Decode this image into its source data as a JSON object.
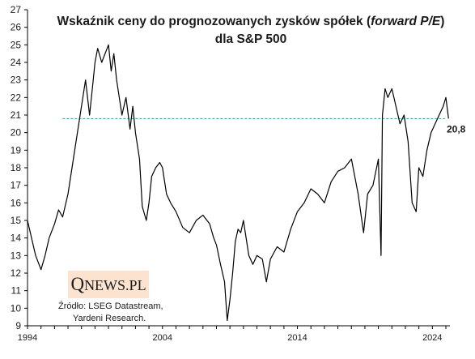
{
  "title": {
    "line1_prefix": "Wskaźnik ceny do prognozowanych zysków spółek (",
    "line1_italic": "forward P/E",
    "line1_suffix": ")",
    "line2": "dla S&P 500"
  },
  "logo": {
    "q": "Q",
    "rest": "NEWS.PL"
  },
  "source": {
    "line1": "Źródło: LSEG Datastream,",
    "line2": "Yardeni Research."
  },
  "colors": {
    "line": "#000000",
    "reference": "#2e9a9a",
    "logo_bg": "#fbe3d0"
  },
  "chart_data": {
    "type": "line",
    "title": "Wskaźnik ceny do prognozowanych zysków spółek (forward P/E) dla S&P 500",
    "xlabel": "",
    "ylabel": "",
    "ylim": [
      9,
      27
    ],
    "xlim": [
      1994,
      2025.3
    ],
    "y_ticks": [
      "9",
      "10",
      "11",
      "12",
      "13",
      "14",
      "15",
      "16",
      "17",
      "18",
      "19",
      "20",
      "21",
      "22",
      "23",
      "24",
      "25",
      "26",
      "27"
    ],
    "x_ticks": [
      "1994",
      "2004",
      "2014",
      "2024"
    ],
    "reference_line": {
      "value": 20.8,
      "label": "20,8",
      "x_start": 1996.6
    },
    "grid": false,
    "series": [
      {
        "x": [
          1994.0,
          1994.3,
          1994.6,
          1995.0,
          1995.3,
          1995.6,
          1996.0,
          1996.3,
          1996.6,
          1997.0,
          1997.3,
          1997.6,
          1998.0,
          1998.3,
          1998.6,
          1998.8,
          1999.0,
          1999.2,
          1999.5,
          1999.8,
          2000.0,
          2000.2,
          2000.4,
          2000.6,
          2000.8,
          2001.0,
          2001.3,
          2001.6,
          2001.8,
          2002.0,
          2002.3,
          2002.5,
          2002.8,
          2003.0,
          2003.2,
          2003.5,
          2003.8,
          2004.0,
          2004.3,
          2004.6,
          2005.0,
          2005.5,
          2006.0,
          2006.5,
          2007.0,
          2007.5,
          2007.8,
          2008.0,
          2008.3,
          2008.6,
          2008.8,
          2009.0,
          2009.2,
          2009.4,
          2009.6,
          2009.8,
          2010.0,
          2010.4,
          2010.7,
          2011.0,
          2011.4,
          2011.7,
          2012.0,
          2012.5,
          2013.0,
          2013.5,
          2014.0,
          2014.5,
          2015.0,
          2015.5,
          2016.0,
          2016.5,
          2017.0,
          2017.5,
          2018.0,
          2018.5,
          2018.9,
          2019.2,
          2019.6,
          2020.0,
          2020.2,
          2020.3,
          2020.5,
          2020.7,
          2021.0,
          2021.3,
          2021.6,
          2021.9,
          2022.2,
          2022.5,
          2022.8,
          2023.0,
          2023.3,
          2023.6,
          2023.9,
          2024.2,
          2024.5,
          2024.8,
          2025.0,
          2025.2
        ],
        "y": [
          15.0,
          14.0,
          13.0,
          12.2,
          13.0,
          14.0,
          14.8,
          15.6,
          15.2,
          16.5,
          18.0,
          19.5,
          21.5,
          23.0,
          21.0,
          22.5,
          24.0,
          24.8,
          24.0,
          24.6,
          25.0,
          23.5,
          24.5,
          23.0,
          22.0,
          21.0,
          22.0,
          20.2,
          21.5,
          20.0,
          18.5,
          15.8,
          15.0,
          16.0,
          17.5,
          18.0,
          18.3,
          18.0,
          16.5,
          16.0,
          15.5,
          14.6,
          14.3,
          15.0,
          15.3,
          14.8,
          14.0,
          13.6,
          12.5,
          11.5,
          9.3,
          10.5,
          12.0,
          13.8,
          14.5,
          14.3,
          15.0,
          13.0,
          12.5,
          13.0,
          12.8,
          11.5,
          12.8,
          13.5,
          13.2,
          14.5,
          15.5,
          16.0,
          16.8,
          16.5,
          16.0,
          17.2,
          17.8,
          18.0,
          18.5,
          16.5,
          14.3,
          16.5,
          17.0,
          18.5,
          13.0,
          21.0,
          22.5,
          22.0,
          22.5,
          21.5,
          20.5,
          21.0,
          19.5,
          16.0,
          15.5,
          18.0,
          17.5,
          19.0,
          20.0,
          20.5,
          21.0,
          21.5,
          22.0,
          20.8
        ]
      }
    ]
  }
}
